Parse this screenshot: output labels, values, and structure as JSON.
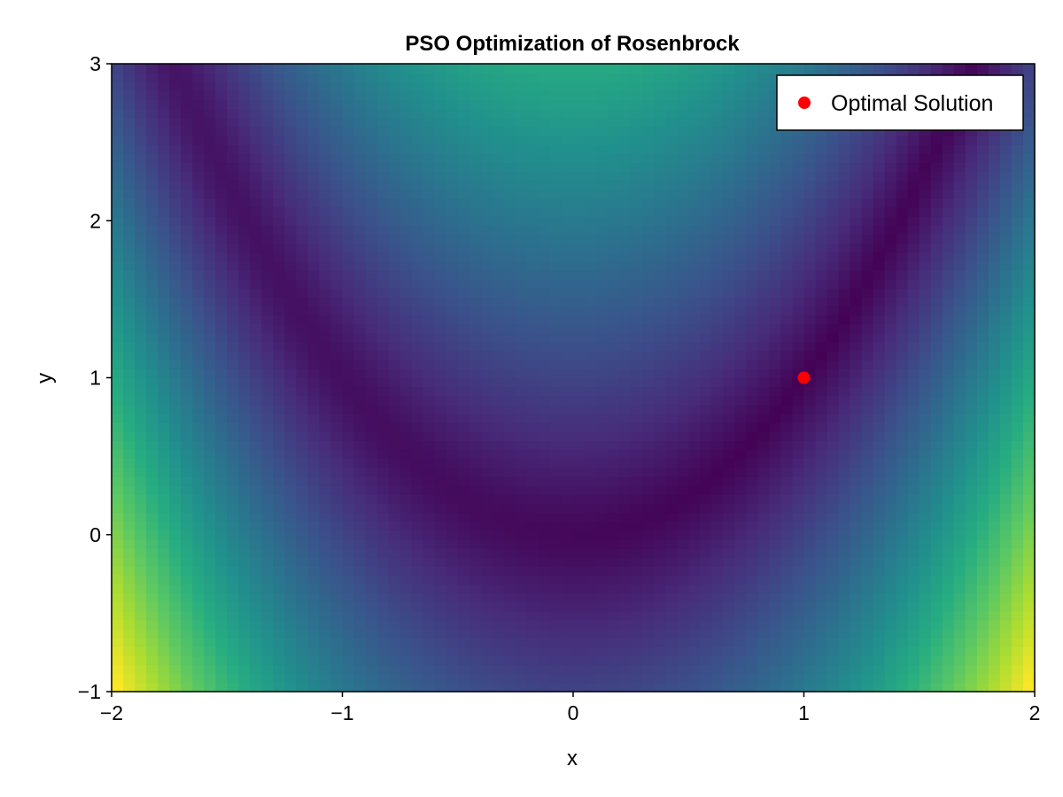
{
  "chart_data": {
    "type": "heatmap",
    "title": "PSO Optimization of Rosenbrock",
    "xlabel": "x",
    "ylabel": "y",
    "xlim": [
      -2,
      2
    ],
    "ylim": [
      -1,
      3
    ],
    "x_ticks": [
      -2,
      -1,
      0,
      1,
      2
    ],
    "x_tick_labels": [
      "−2",
      "−1",
      "0",
      "1",
      "2"
    ],
    "y_ticks": [
      -1,
      0,
      1,
      2,
      3
    ],
    "y_tick_labels": [
      "−1",
      "0",
      "1",
      "2",
      "3"
    ],
    "grid": false,
    "colormap": "viridis",
    "heatmap_grid": {
      "nx": 80,
      "ny": 70
    },
    "series": [
      {
        "name": "Optimal Solution",
        "type": "scatter",
        "x": [
          1.0
        ],
        "y": [
          1.0
        ],
        "color": "#ff0000"
      }
    ],
    "legend": {
      "position": "top-right",
      "entries": [
        "Optimal Solution"
      ]
    }
  }
}
